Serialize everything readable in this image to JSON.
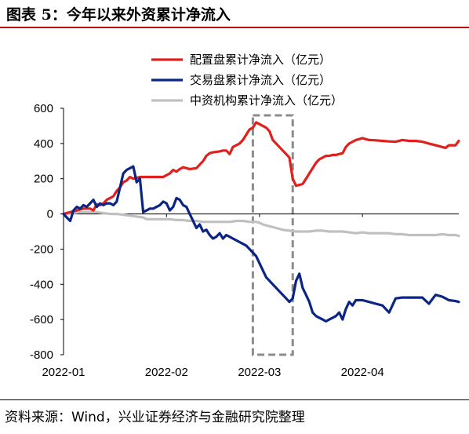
{
  "title": "图表 5：今年以来外资累计净流入",
  "source": "资料来源：Wind，兴业证券经济与金融研究院整理",
  "chart_data": {
    "type": "line",
    "ylim": [
      -800,
      600
    ],
    "yticks": [
      "600",
      "400",
      "200",
      "0",
      "-200",
      "-400",
      "-600",
      "-800"
    ],
    "ytick_values": [
      600,
      400,
      200,
      0,
      -200,
      -400,
      -600,
      -800
    ],
    "xticks": [
      "2022-01",
      "2022-02",
      "2022-03",
      "2022-04"
    ],
    "xtick_days": [
      0,
      31,
      59,
      90
    ],
    "x_range": [
      0,
      119
    ],
    "grid": false,
    "legend_position": "top-right",
    "highlight_box": {
      "x_from": 57,
      "x_to": 69,
      "y_from": 560,
      "y_to": -800
    },
    "series": [
      {
        "name": "配置盘累计净流入（亿元）",
        "color": "#e0201c",
        "x": [
          0,
          2,
          4,
          5,
          6,
          7,
          8,
          9,
          10,
          11,
          12,
          13,
          14,
          15,
          16,
          17,
          18,
          19,
          20,
          21,
          22,
          23,
          26,
          27,
          28,
          29,
          30,
          31,
          32,
          33,
          34,
          35,
          36,
          37,
          38,
          40,
          41,
          42,
          43,
          44,
          45,
          47,
          48,
          49,
          50,
          51,
          52,
          53,
          54,
          55,
          56,
          57,
          58,
          59,
          60,
          61,
          62,
          63,
          64,
          65,
          66,
          67,
          68,
          69,
          70,
          71,
          72,
          73,
          74,
          75,
          76,
          77,
          78,
          79,
          80,
          81,
          82,
          83,
          84,
          85,
          86,
          87,
          88,
          90,
          91,
          92,
          94,
          96,
          98,
          100,
          102,
          104,
          106,
          108,
          110,
          112,
          114,
          115,
          116,
          117,
          118,
          119
        ],
        "values": [
          0,
          10,
          20,
          25,
          30,
          30,
          30,
          20,
          55,
          50,
          60,
          80,
          90,
          100,
          130,
          150,
          180,
          190,
          210,
          200,
          205,
          210,
          210,
          210,
          210,
          210,
          210,
          220,
          230,
          250,
          240,
          255,
          265,
          260,
          255,
          260,
          280,
          300,
          330,
          345,
          350,
          355,
          360,
          360,
          340,
          380,
          390,
          400,
          420,
          450,
          480,
          490,
          520,
          510,
          500,
          490,
          470,
          420,
          400,
          380,
          360,
          340,
          320,
          200,
          160,
          165,
          170,
          200,
          230,
          260,
          290,
          310,
          320,
          330,
          330,
          335,
          335,
          340,
          345,
          380,
          400,
          410,
          420,
          430,
          425,
          420,
          418,
          415,
          412,
          410,
          420,
          415,
          415,
          410,
          400,
          390,
          380,
          375,
          390,
          390,
          390,
          415
        ]
      },
      {
        "name": "交易盘累计净流入（亿元）",
        "color": "#0b2585",
        "x": [
          0,
          1,
          2,
          3,
          4,
          5,
          6,
          7,
          8,
          9,
          10,
          11,
          12,
          13,
          14,
          15,
          16,
          17,
          18,
          19,
          20,
          21,
          22,
          23,
          24,
          25,
          26,
          27,
          28,
          29,
          30,
          31,
          32,
          33,
          34,
          35,
          36,
          37,
          38,
          39,
          40,
          41,
          42,
          43,
          44,
          45,
          46,
          47,
          48,
          49,
          50,
          51,
          52,
          53,
          54,
          55,
          56,
          57,
          58,
          59,
          60,
          61,
          62,
          63,
          64,
          65,
          66,
          67,
          68,
          69,
          70,
          71,
          72,
          73,
          74,
          75,
          76,
          77,
          78,
          79,
          80,
          81,
          82,
          83,
          84,
          85,
          86,
          87,
          88,
          90,
          92,
          94,
          96,
          98,
          100,
          102,
          104,
          106,
          108,
          110,
          112,
          114,
          115,
          116,
          118,
          119
        ],
        "values": [
          0,
          -20,
          -40,
          20,
          40,
          30,
          50,
          40,
          60,
          80,
          40,
          60,
          50,
          60,
          60,
          50,
          70,
          150,
          230,
          250,
          260,
          270,
          180,
          200,
          10,
          20,
          30,
          30,
          40,
          50,
          70,
          60,
          20,
          40,
          90,
          80,
          50,
          40,
          0,
          -40,
          -80,
          -60,
          -100,
          -90,
          -120,
          -140,
          -130,
          -110,
          -140,
          -120,
          -130,
          -140,
          -150,
          -160,
          -170,
          -180,
          -200,
          -220,
          -240,
          -280,
          -320,
          -360,
          -380,
          -400,
          -420,
          -440,
          -460,
          -480,
          -500,
          -480,
          -380,
          -340,
          -420,
          -460,
          -500,
          -560,
          -580,
          -590,
          -600,
          -610,
          -600,
          -590,
          -580,
          -560,
          -600,
          -540,
          -500,
          -520,
          -490,
          -490,
          -500,
          -510,
          -520,
          -560,
          -480,
          -475,
          -475,
          -475,
          -475,
          -510,
          -460,
          -470,
          -480,
          -490,
          -495,
          -500
        ]
      },
      {
        "name": "中资机构累计净流入（亿元）",
        "color": "#c0c0c0",
        "x": [
          0,
          3,
          5,
          8,
          10,
          12,
          14,
          16,
          18,
          20,
          22,
          24,
          25,
          26,
          28,
          30,
          32,
          34,
          36,
          38,
          40,
          42,
          44,
          46,
          48,
          50,
          52,
          54,
          56,
          58,
          59,
          60,
          62,
          64,
          66,
          68,
          70,
          72,
          74,
          76,
          78,
          80,
          82,
          84,
          86,
          88,
          90,
          92,
          94,
          96,
          98,
          100,
          102,
          104,
          106,
          108,
          110,
          112,
          114,
          116,
          118,
          119
        ],
        "values": [
          0,
          5,
          10,
          10,
          10,
          5,
          0,
          0,
          -5,
          -10,
          -15,
          -20,
          -30,
          -30,
          -30,
          -30,
          -30,
          -35,
          -35,
          -40,
          -40,
          -45,
          -45,
          -45,
          -45,
          -45,
          -40,
          -40,
          -45,
          -45,
          -50,
          -60,
          -70,
          -80,
          -90,
          -95,
          -100,
          -100,
          -100,
          -95,
          -95,
          -100,
          -100,
          -100,
          -105,
          -110,
          -105,
          -110,
          -110,
          -110,
          -110,
          -115,
          -115,
          -120,
          -120,
          -120,
          -120,
          -120,
          -115,
          -120,
          -120,
          -125
        ]
      }
    ]
  }
}
